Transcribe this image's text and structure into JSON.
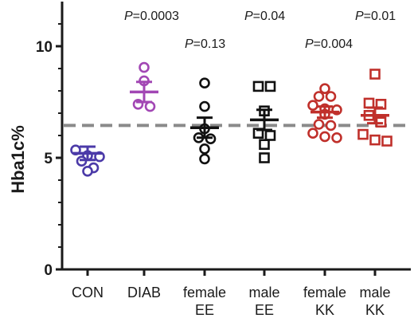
{
  "chart_data": {
    "type": "scatter",
    "ylabel": "Hba1c%",
    "ylim": [
      0,
      12
    ],
    "yticks": [
      "0",
      "5",
      "10"
    ],
    "reference_line": 6.45,
    "reference_line_style": "dashed",
    "reference_line_color": "#8a8a8a",
    "categories": [
      {
        "label": [
          "CON"
        ],
        "color": "#4b3aa8",
        "marker": "circle",
        "mean": 5.2,
        "sem": 0.3,
        "values": [
          5.35,
          5.05,
          5.1,
          4.85,
          4.55,
          4.4
        ]
      },
      {
        "label": [
          "DIAB"
        ],
        "color": "#a247b4",
        "marker": "circle",
        "mean": 7.95,
        "sem": 0.45,
        "values": [
          9.05,
          8.45,
          7.4,
          7.3
        ],
        "pvalue": "0.0003"
      },
      {
        "label": [
          "female",
          "EE"
        ],
        "color": "#111111",
        "marker": "circle",
        "mean": 6.35,
        "sem": 0.45,
        "values": [
          8.35,
          7.3,
          6.3,
          5.9,
          5.85,
          5.4,
          4.95
        ],
        "pvalue": "0.13"
      },
      {
        "label": [
          "male",
          "EE"
        ],
        "color": "#111111",
        "marker": "square",
        "mean": 6.7,
        "sem": 0.45,
        "values": [
          8.2,
          8.2,
          7.1,
          6.1,
          6.0,
          5.6,
          5.0
        ],
        "pvalue": "0.04"
      },
      {
        "label": [
          "female",
          "KK"
        ],
        "color": "#c0302b",
        "marker": "circle",
        "mean": 7.05,
        "sem": 0.25,
        "values": [
          8.1,
          7.75,
          7.75,
          7.35,
          7.2,
          7.15,
          6.95,
          6.5,
          6.45,
          6.1,
          5.95,
          5.9
        ],
        "pvalue": "0.004"
      },
      {
        "label": [
          "male",
          "KK"
        ],
        "color": "#c0302b",
        "marker": "square",
        "mean": 6.9,
        "sem": 0.35,
        "values": [
          8.75,
          7.45,
          7.4,
          6.9,
          6.6,
          6.05,
          5.8,
          5.75
        ],
        "pvalue": "0.01"
      }
    ]
  }
}
